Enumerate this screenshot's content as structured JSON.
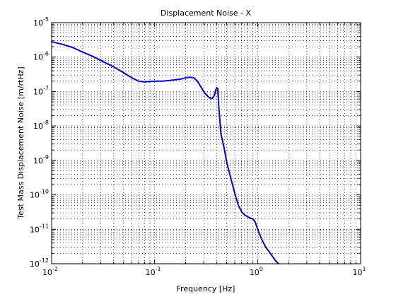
{
  "chart_data": {
    "type": "line",
    "title": "Displacement Noise - X",
    "xlabel": "Frequency [Hz]",
    "ylabel": "Test Mass Displacement Noise [m/rtHz]",
    "xscale": "log",
    "yscale": "log",
    "xlim": [
      0.01,
      10
    ],
    "ylim": [
      1e-12,
      1e-05
    ],
    "grid": true,
    "x_ticks": [
      {
        "base": "10",
        "exp": "-2"
      },
      {
        "base": "10",
        "exp": "-1"
      },
      {
        "base": "10",
        "exp": "0"
      },
      {
        "base": "10",
        "exp": "1"
      }
    ],
    "y_ticks": [
      {
        "base": "10",
        "exp": "-12"
      },
      {
        "base": "10",
        "exp": "-11"
      },
      {
        "base": "10",
        "exp": "-10"
      },
      {
        "base": "10",
        "exp": "-9"
      },
      {
        "base": "10",
        "exp": "-8"
      },
      {
        "base": "10",
        "exp": "-7"
      },
      {
        "base": "10",
        "exp": "-6"
      },
      {
        "base": "10",
        "exp": "-5"
      }
    ],
    "series": [
      {
        "color": "#0000cc",
        "x": [
          0.01,
          0.013,
          0.016,
          0.02,
          0.025,
          0.03,
          0.04,
          0.05,
          0.06,
          0.07,
          0.08,
          0.09,
          0.1,
          0.12,
          0.14,
          0.16,
          0.18,
          0.2,
          0.22,
          0.24,
          0.26,
          0.28,
          0.3,
          0.32,
          0.34,
          0.36,
          0.38,
          0.39,
          0.4,
          0.41,
          0.42,
          0.44,
          0.47,
          0.5,
          0.55,
          0.6,
          0.65,
          0.7,
          0.75,
          0.8,
          0.85,
          0.9,
          0.95,
          1.0,
          1.05,
          1.1,
          1.2,
          1.3,
          1.4,
          1.5,
          1.6
        ],
        "y": [
          2.8e-06,
          2.3e-06,
          1.9e-06,
          1.4e-06,
          1.05e-06,
          8e-07,
          5.2e-07,
          3.5e-07,
          2.5e-07,
          2e-07,
          1.9e-07,
          1.95e-07,
          2e-07,
          2e-07,
          2.1e-07,
          2.2e-07,
          2.3e-07,
          2.5e-07,
          2.6e-07,
          2.5e-07,
          2e-07,
          1.4e-07,
          1e-07,
          7.8e-08,
          6.6e-08,
          6.2e-08,
          7.6e-08,
          1.05e-07,
          1.3e-07,
          1.2e-07,
          3.5e-08,
          6e-09,
          2.5e-09,
          9e-10,
          3e-10,
          1.1e-10,
          5e-11,
          3.2e-11,
          2.6e-11,
          2.3e-11,
          2.1e-11,
          2e-11,
          1.6e-11,
          1e-11,
          7e-12,
          5e-12,
          3e-12,
          2.2e-12,
          1.6e-12,
          1.2e-12,
          1e-12
        ]
      }
    ]
  }
}
